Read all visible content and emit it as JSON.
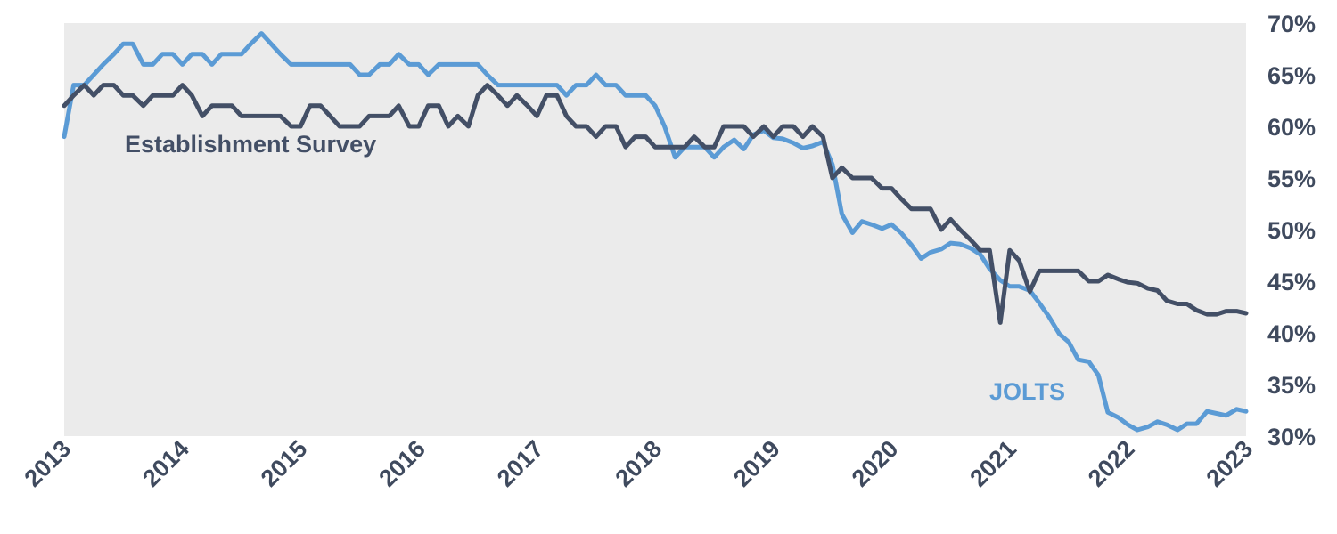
{
  "chart_data": {
    "type": "line",
    "title": "",
    "xlabel": "",
    "ylabel": "",
    "x_range": [
      2013,
      2023
    ],
    "ylim": [
      30,
      70
    ],
    "y_ticks": [
      "30%",
      "35%",
      "40%",
      "45%",
      "50%",
      "55%",
      "60%",
      "65%",
      "70%"
    ],
    "x_ticks": [
      "2013",
      "2014",
      "2015",
      "2016",
      "2017",
      "2018",
      "2019",
      "2020",
      "2021",
      "2022",
      "2023"
    ],
    "y_axis_side": "right",
    "background": "#ebebeb",
    "grid": false,
    "series": [
      {
        "name": "Establishment Survey",
        "color": "#434f66",
        "points": [
          [
            2013.0,
            62
          ],
          [
            2013.08,
            63
          ],
          [
            2013.17,
            64
          ],
          [
            2013.25,
            63
          ],
          [
            2013.33,
            64
          ],
          [
            2013.42,
            64
          ],
          [
            2013.5,
            63
          ],
          [
            2013.58,
            63
          ],
          [
            2013.67,
            62
          ],
          [
            2013.75,
            63
          ],
          [
            2013.83,
            63
          ],
          [
            2013.92,
            63
          ],
          [
            2014.0,
            64
          ],
          [
            2014.08,
            63
          ],
          [
            2014.17,
            61
          ],
          [
            2014.25,
            62
          ],
          [
            2014.33,
            62
          ],
          [
            2014.42,
            62
          ],
          [
            2014.5,
            61
          ],
          [
            2014.58,
            61
          ],
          [
            2014.67,
            61
          ],
          [
            2014.75,
            61
          ],
          [
            2014.83,
            61
          ],
          [
            2014.92,
            60
          ],
          [
            2015.0,
            60
          ],
          [
            2015.08,
            62
          ],
          [
            2015.17,
            62
          ],
          [
            2015.25,
            61
          ],
          [
            2015.33,
            60
          ],
          [
            2015.42,
            60
          ],
          [
            2015.5,
            60
          ],
          [
            2015.58,
            61
          ],
          [
            2015.67,
            61
          ],
          [
            2015.75,
            61
          ],
          [
            2015.83,
            62
          ],
          [
            2015.92,
            60
          ],
          [
            2016.0,
            60
          ],
          [
            2016.08,
            62
          ],
          [
            2016.17,
            62
          ],
          [
            2016.25,
            60
          ],
          [
            2016.33,
            61
          ],
          [
            2016.42,
            60
          ],
          [
            2016.5,
            63
          ],
          [
            2016.58,
            64
          ],
          [
            2016.67,
            63
          ],
          [
            2016.75,
            62
          ],
          [
            2016.83,
            63
          ],
          [
            2016.92,
            62
          ],
          [
            2017.0,
            61
          ],
          [
            2017.08,
            63
          ],
          [
            2017.17,
            63
          ],
          [
            2017.25,
            61
          ],
          [
            2017.33,
            60
          ],
          [
            2017.42,
            60
          ],
          [
            2017.5,
            59
          ],
          [
            2017.58,
            60
          ],
          [
            2017.67,
            60
          ],
          [
            2017.75,
            58
          ],
          [
            2017.83,
            59
          ],
          [
            2017.92,
            59
          ],
          [
            2018.0,
            58
          ],
          [
            2018.08,
            58
          ],
          [
            2018.17,
            58
          ],
          [
            2018.25,
            58
          ],
          [
            2018.33,
            59
          ],
          [
            2018.42,
            58
          ],
          [
            2018.5,
            58
          ],
          [
            2018.58,
            60
          ],
          [
            2018.67,
            60
          ],
          [
            2018.75,
            60
          ],
          [
            2018.83,
            59
          ],
          [
            2018.92,
            60
          ],
          [
            2019.0,
            59
          ],
          [
            2019.08,
            60
          ],
          [
            2019.17,
            60
          ],
          [
            2019.25,
            59
          ],
          [
            2019.33,
            60
          ],
          [
            2019.42,
            59
          ],
          [
            2019.5,
            55
          ],
          [
            2019.58,
            56
          ],
          [
            2019.67,
            55
          ],
          [
            2019.75,
            55
          ],
          [
            2019.83,
            55
          ],
          [
            2019.92,
            54
          ],
          [
            2020.0,
            54
          ],
          [
            2020.08,
            53
          ],
          [
            2020.17,
            52
          ],
          [
            2020.25,
            52
          ],
          [
            2020.33,
            52
          ],
          [
            2020.42,
            50
          ],
          [
            2020.5,
            51
          ],
          [
            2020.58,
            50
          ],
          [
            2020.67,
            49
          ],
          [
            2020.75,
            48
          ],
          [
            2020.83,
            48
          ],
          [
            2020.92,
            41
          ],
          [
            2021.0,
            48
          ],
          [
            2021.08,
            47
          ],
          [
            2021.17,
            44
          ],
          [
            2021.25,
            46
          ],
          [
            2021.33,
            46
          ],
          [
            2021.42,
            46
          ],
          [
            2021.5,
            46
          ],
          [
            2021.58,
            46
          ],
          [
            2021.67,
            45
          ],
          [
            2021.75,
            45
          ],
          [
            2021.83,
            45.6
          ],
          [
            2021.92,
            45.2
          ],
          [
            2022.0,
            44.9
          ],
          [
            2022.08,
            44.8
          ],
          [
            2022.17,
            44.3
          ],
          [
            2022.25,
            44.1
          ],
          [
            2022.33,
            43.1
          ],
          [
            2022.42,
            42.8
          ],
          [
            2022.5,
            42.8
          ],
          [
            2022.58,
            42.2
          ],
          [
            2022.67,
            41.8
          ],
          [
            2022.75,
            41.8
          ],
          [
            2022.83,
            42.1
          ],
          [
            2022.92,
            42.1
          ],
          [
            2023.0,
            41.9
          ]
        ]
      },
      {
        "name": "JOLTS",
        "color": "#5b9bd5",
        "points": [
          [
            2013.0,
            59
          ],
          [
            2013.08,
            64
          ],
          [
            2013.17,
            64
          ],
          [
            2013.25,
            65
          ],
          [
            2013.33,
            66
          ],
          [
            2013.42,
            67
          ],
          [
            2013.5,
            68
          ],
          [
            2013.58,
            68
          ],
          [
            2013.67,
            66
          ],
          [
            2013.75,
            66
          ],
          [
            2013.83,
            67
          ],
          [
            2013.92,
            67
          ],
          [
            2014.0,
            66
          ],
          [
            2014.08,
            67
          ],
          [
            2014.17,
            67
          ],
          [
            2014.25,
            66
          ],
          [
            2014.33,
            67
          ],
          [
            2014.42,
            67
          ],
          [
            2014.5,
            67
          ],
          [
            2014.58,
            68
          ],
          [
            2014.67,
            69
          ],
          [
            2014.75,
            68
          ],
          [
            2014.83,
            67
          ],
          [
            2014.92,
            66
          ],
          [
            2015.0,
            66
          ],
          [
            2015.08,
            66
          ],
          [
            2015.17,
            66
          ],
          [
            2015.25,
            66
          ],
          [
            2015.33,
            66
          ],
          [
            2015.42,
            66
          ],
          [
            2015.5,
            65
          ],
          [
            2015.58,
            65
          ],
          [
            2015.67,
            66
          ],
          [
            2015.75,
            66
          ],
          [
            2015.83,
            67
          ],
          [
            2015.92,
            66
          ],
          [
            2016.0,
            66
          ],
          [
            2016.08,
            65
          ],
          [
            2016.17,
            66
          ],
          [
            2016.25,
            66
          ],
          [
            2016.33,
            66
          ],
          [
            2016.42,
            66
          ],
          [
            2016.5,
            66
          ],
          [
            2016.58,
            65
          ],
          [
            2016.67,
            64
          ],
          [
            2016.75,
            64
          ],
          [
            2016.83,
            64
          ],
          [
            2016.92,
            64
          ],
          [
            2017.0,
            64
          ],
          [
            2017.08,
            64
          ],
          [
            2017.17,
            64
          ],
          [
            2017.25,
            63
          ],
          [
            2017.33,
            64
          ],
          [
            2017.42,
            64
          ],
          [
            2017.5,
            65
          ],
          [
            2017.58,
            64
          ],
          [
            2017.67,
            64
          ],
          [
            2017.75,
            63
          ],
          [
            2017.83,
            63
          ],
          [
            2017.92,
            63
          ],
          [
            2018.0,
            62
          ],
          [
            2018.08,
            60
          ],
          [
            2018.17,
            57
          ],
          [
            2018.25,
            58
          ],
          [
            2018.33,
            58
          ],
          [
            2018.42,
            58
          ],
          [
            2018.5,
            57
          ],
          [
            2018.58,
            58
          ],
          [
            2018.67,
            58.7
          ],
          [
            2018.75,
            57.8
          ],
          [
            2018.83,
            59.2
          ],
          [
            2018.92,
            59.6
          ],
          [
            2019.0,
            58.9
          ],
          [
            2019.08,
            58.8
          ],
          [
            2019.17,
            58.4
          ],
          [
            2019.25,
            57.9
          ],
          [
            2019.33,
            58.1
          ],
          [
            2019.42,
            58.5
          ],
          [
            2019.5,
            56.3
          ],
          [
            2019.58,
            51.5
          ],
          [
            2019.67,
            49.7
          ],
          [
            2019.75,
            50.8
          ],
          [
            2019.83,
            50.5
          ],
          [
            2019.92,
            50.1
          ],
          [
            2020.0,
            50.5
          ],
          [
            2020.08,
            49.7
          ],
          [
            2020.17,
            48.5
          ],
          [
            2020.25,
            47.2
          ],
          [
            2020.33,
            47.8
          ],
          [
            2020.42,
            48.1
          ],
          [
            2020.5,
            48.7
          ],
          [
            2020.58,
            48.6
          ],
          [
            2020.67,
            48.2
          ],
          [
            2020.75,
            47.6
          ],
          [
            2020.83,
            46.2
          ],
          [
            2020.92,
            45.1
          ],
          [
            2021.0,
            44.5
          ],
          [
            2021.08,
            44.5
          ],
          [
            2021.17,
            44.1
          ],
          [
            2021.25,
            42.9
          ],
          [
            2021.33,
            41.6
          ],
          [
            2021.42,
            39.9
          ],
          [
            2021.5,
            39.1
          ],
          [
            2021.58,
            37.4
          ],
          [
            2021.67,
            37.2
          ],
          [
            2021.75,
            35.9
          ],
          [
            2021.83,
            32.3
          ],
          [
            2021.92,
            31.8
          ],
          [
            2022.0,
            31.1
          ],
          [
            2022.08,
            30.6
          ],
          [
            2022.17,
            30.9
          ],
          [
            2022.25,
            31.4
          ],
          [
            2022.33,
            31.1
          ],
          [
            2022.42,
            30.6
          ],
          [
            2022.5,
            31.2
          ],
          [
            2022.58,
            31.2
          ],
          [
            2022.67,
            32.4
          ],
          [
            2022.75,
            32.2
          ],
          [
            2022.83,
            32.0
          ],
          [
            2022.92,
            32.6
          ],
          [
            2023.0,
            32.4
          ]
        ]
      }
    ],
    "annotations": [
      {
        "text": "Establishment Survey",
        "series": "Establishment Survey",
        "color": "#434f66"
      },
      {
        "text": "JOLTS",
        "series": "JOLTS",
        "color": "#5b9bd5"
      }
    ]
  }
}
